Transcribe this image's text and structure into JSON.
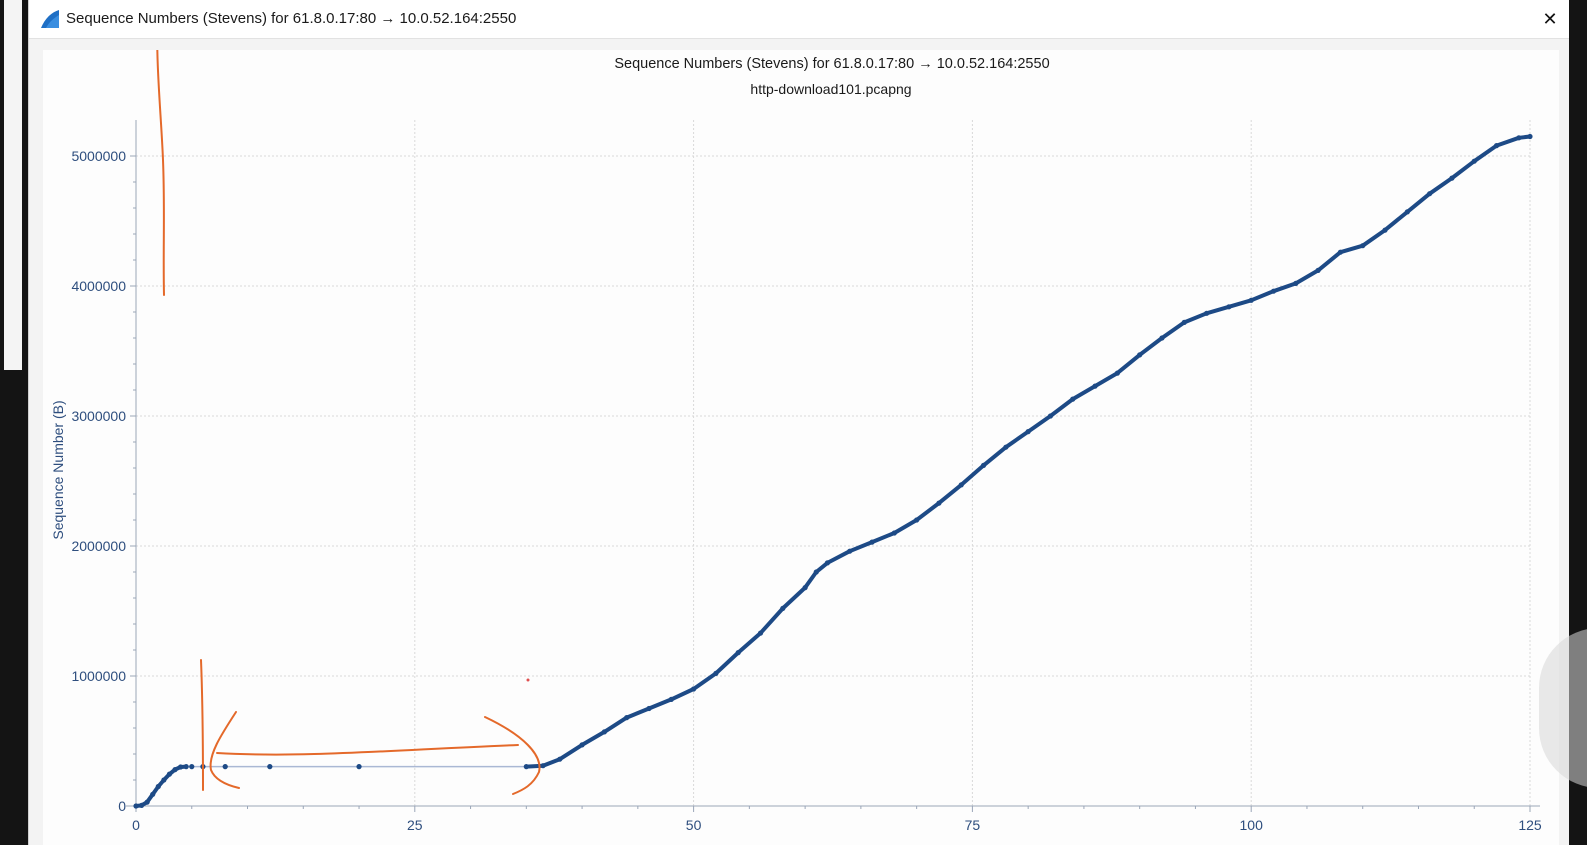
{
  "window": {
    "title": "Sequence Numbers (Stevens) for 61.8.0.17:80 → 10.0.52.164:2550",
    "close_glyph": "✕",
    "icon": "wireshark-fin-icon"
  },
  "colors": {
    "series": "#1d4a86",
    "axis_text": "#2e4e7e",
    "grid": "#d9d9d9",
    "annotation": "#e4692a",
    "gap_line": "#aab8d4"
  },
  "chart_data": {
    "type": "scatter",
    "title": "Sequence Numbers (Stevens) for 61.8.0.17:80 → 10.0.52.164:2550",
    "subtitle": "http-download101.pcapng",
    "xlabel": "",
    "ylabel": "Sequence Number (B)",
    "xlim": [
      0,
      125
    ],
    "ylim": [
      0,
      5150000
    ],
    "xticks": [
      0,
      25,
      50,
      75,
      100,
      125
    ],
    "yticks": [
      0,
      1000000,
      2000000,
      3000000,
      4000000,
      5000000
    ],
    "ytick_labels": [
      "0",
      "1000000",
      "2000000",
      "3000000",
      "4000000",
      "5000000"
    ],
    "grid": true,
    "series": [
      {
        "x": [
          0,
          0.5,
          1,
          1.5,
          2,
          2.5,
          3,
          3.5,
          4,
          4.5,
          5,
          6,
          8,
          12,
          20,
          35,
          36.5,
          38,
          40,
          42,
          44,
          46,
          48,
          50,
          52,
          54,
          56,
          58,
          60,
          61,
          62,
          64,
          66,
          68,
          70,
          72,
          74,
          76,
          78,
          80,
          82,
          84,
          86,
          88,
          90,
          92,
          94,
          96,
          98,
          100,
          102,
          104,
          106,
          108,
          110,
          112,
          114,
          116,
          118,
          120,
          122,
          124,
          125
        ],
        "y": [
          0,
          5000,
          30000,
          90000,
          150000,
          200000,
          245000,
          280000,
          300000,
          303000,
          303000,
          303000,
          303000,
          303000,
          303000,
          303000,
          310000,
          360000,
          470000,
          570000,
          680000,
          750000,
          820000,
          900000,
          1020000,
          1180000,
          1330000,
          1520000,
          1680000,
          1800000,
          1870000,
          1960000,
          2030000,
          2100000,
          2200000,
          2330000,
          2470000,
          2620000,
          2760000,
          2880000,
          3000000,
          3130000,
          3230000,
          3330000,
          3470000,
          3600000,
          3720000,
          3790000,
          3840000,
          3890000,
          3960000,
          4020000,
          4120000,
          4260000,
          4310000,
          4430000,
          4570000,
          4710000,
          4830000,
          4960000,
          5080000,
          5140000,
          5150000
        ]
      }
    ],
    "sparse_points": {
      "x": [
        6,
        8,
        12,
        20
      ],
      "y": [
        303000,
        303000,
        303000,
        303000
      ]
    }
  }
}
